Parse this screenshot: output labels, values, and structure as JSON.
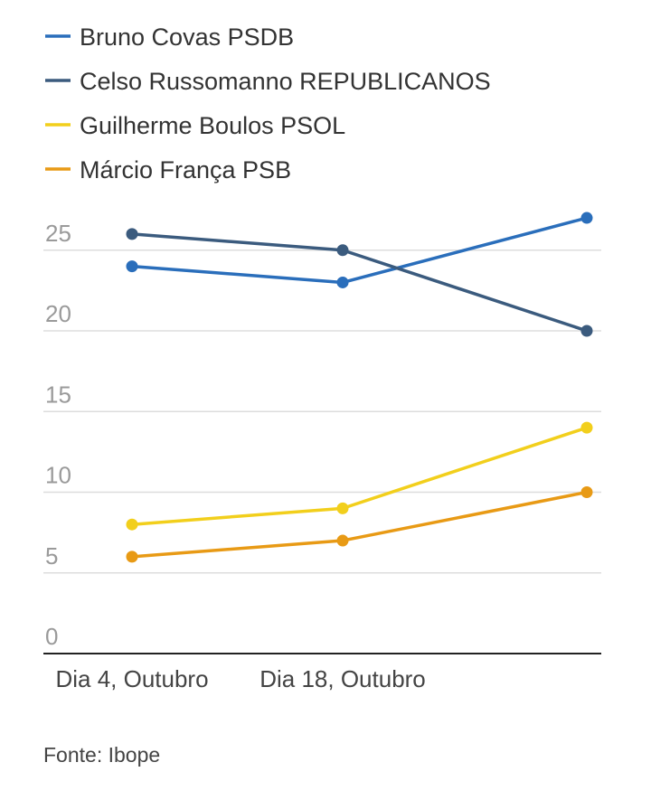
{
  "chart_data": {
    "type": "line",
    "title": "",
    "xlabel": "",
    "ylabel": "",
    "x": [
      "Dia 4, Outubro",
      "Dia 18, Outubro",
      ""
    ],
    "x_tick_labels": [
      "Dia 4, Outubro",
      "Dia 18, Outubro"
    ],
    "y_ticks": [
      "0",
      "5",
      "10",
      "15",
      "20",
      "25"
    ],
    "ylim": [
      0,
      27
    ],
    "grid": true,
    "legend_position": "top",
    "series": [
      {
        "name": "Bruno Covas PSDB",
        "color": "#2a6ebb",
        "values": [
          24,
          23,
          27
        ]
      },
      {
        "name": "Celso Russomanno REPUBLICANOS",
        "color": "#3b5b7e",
        "values": [
          26,
          25,
          20
        ]
      },
      {
        "name": "Guilherme Boulos PSOL",
        "color": "#f2cf1c",
        "values": [
          8,
          9,
          14
        ]
      },
      {
        "name": "Márcio França PSB",
        "color": "#e89a15",
        "values": [
          6,
          7,
          10
        ]
      }
    ],
    "source": "Fonte: Ibope"
  }
}
